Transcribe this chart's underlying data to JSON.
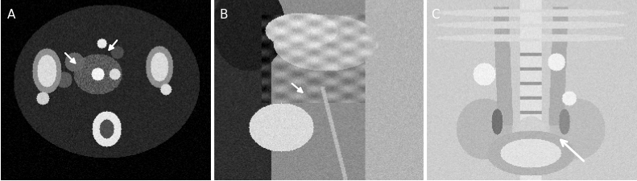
{
  "fig_width": 7.91,
  "fig_height": 2.26,
  "dpi": 100,
  "background_color": "#ffffff",
  "panels": [
    "A",
    "B",
    "C"
  ],
  "label_color": "white",
  "label_fontsize": 11,
  "border_color": "white",
  "border_linewidth": 3.0
}
